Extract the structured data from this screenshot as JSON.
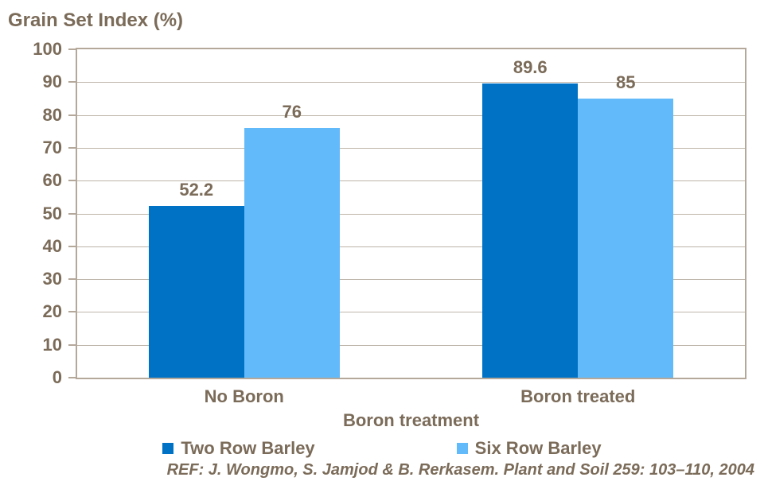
{
  "chart_data": {
    "type": "bar",
    "title": "Grain Set Index (%)",
    "xlabel": "Boron treatment",
    "ylabel": "Grain Set Index (%)",
    "categories": [
      "No Boron",
      "Boron treated"
    ],
    "series": [
      {
        "name": "Two Row Barley",
        "color": "#0072C6",
        "values": [
          52.2,
          89.6
        ]
      },
      {
        "name": "Six Row Barley",
        "color": "#63BAFB",
        "values": [
          76,
          85
        ]
      }
    ],
    "ylim": [
      0,
      100
    ],
    "yticks": [
      0,
      10,
      20,
      30,
      40,
      50,
      60,
      70,
      80,
      90,
      100
    ],
    "grid": true,
    "legend_position": "bottom",
    "data_labels": true
  },
  "footer": {
    "reference": "REF: J. Wongmo, S. Jamjod & B. Rerkasem. Plant and Soil 259: 103–110, 2004"
  },
  "colors": {
    "text": "#7B6B59",
    "axis_border": "#B4A89A",
    "gridline": "#BEB5A9",
    "series_two_row": "#0072C6",
    "series_six_row": "#63BAFB",
    "background": "#FFFFFF"
  }
}
